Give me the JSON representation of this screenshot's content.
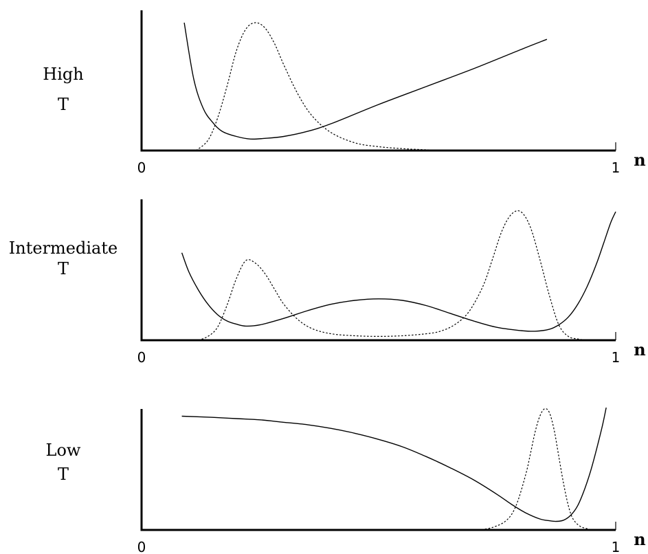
{
  "chart_data": [
    {
      "type": "line",
      "panel_label": [
        "High",
        "T"
      ],
      "xlabel": "n",
      "x_tick_labels": [
        "0",
        "1"
      ],
      "xlim": [
        0,
        1
      ],
      "ylim": [
        0,
        1
      ],
      "series": [
        {
          "style": "solid",
          "x": [
            0.09,
            0.11,
            0.13,
            0.15,
            0.17,
            0.2,
            0.23,
            0.26,
            0.3,
            0.35,
            0.4,
            0.5,
            0.6,
            0.7,
            0.8,
            0.855
          ],
          "y": [
            1.0,
            0.56,
            0.33,
            0.22,
            0.15,
            0.11,
            0.09,
            0.095,
            0.11,
            0.15,
            0.21,
            0.36,
            0.5,
            0.64,
            0.79,
            0.87
          ]
        },
        {
          "style": "dotted",
          "x": [
            0.115,
            0.14,
            0.16,
            0.18,
            0.2,
            0.22,
            0.24,
            0.26,
            0.28,
            0.3,
            0.33,
            0.36,
            0.4,
            0.45,
            0.5,
            0.55,
            0.6,
            0.66
          ],
          "y": [
            0.0,
            0.08,
            0.25,
            0.5,
            0.78,
            0.95,
            1.0,
            0.96,
            0.84,
            0.67,
            0.44,
            0.27,
            0.14,
            0.06,
            0.03,
            0.015,
            0.006,
            0.0
          ]
        }
      ]
    },
    {
      "type": "line",
      "panel_label": [
        "Intermediate",
        "T"
      ],
      "xlabel": "n",
      "x_tick_labels": [
        "0",
        "1"
      ],
      "xlim": [
        0,
        1
      ],
      "ylim": [
        0,
        1
      ],
      "series": [
        {
          "style": "solid",
          "x": [
            0.085,
            0.1,
            0.12,
            0.14,
            0.16,
            0.18,
            0.2,
            0.22,
            0.25,
            0.3,
            0.35,
            0.4,
            0.45,
            0.5,
            0.55,
            0.6,
            0.65,
            0.7,
            0.75,
            0.8,
            0.83,
            0.86,
            0.88,
            0.9,
            0.92,
            0.94,
            0.96,
            0.975,
            0.99,
            1.0
          ],
          "y": [
            0.68,
            0.53,
            0.39,
            0.28,
            0.2,
            0.15,
            0.125,
            0.11,
            0.12,
            0.17,
            0.23,
            0.28,
            0.31,
            0.322,
            0.31,
            0.27,
            0.21,
            0.15,
            0.1,
            0.075,
            0.07,
            0.085,
            0.12,
            0.18,
            0.28,
            0.42,
            0.6,
            0.76,
            0.92,
            1.0
          ]
        },
        {
          "style": "dotted",
          "x": [
            0.12,
            0.14,
            0.16,
            0.18,
            0.2,
            0.22,
            0.24,
            0.26,
            0.28,
            0.3,
            0.33,
            0.36,
            0.4,
            0.45,
            0.5,
            0.55,
            0.6,
            0.63,
            0.66,
            0.69,
            0.72,
            0.74,
            0.76,
            0.78,
            0.8,
            0.82,
            0.84,
            0.86,
            0.88,
            0.9,
            0.92,
            0.94
          ],
          "y": [
            0.0,
            0.03,
            0.1,
            0.27,
            0.48,
            0.62,
            0.6,
            0.52,
            0.4,
            0.28,
            0.16,
            0.09,
            0.05,
            0.035,
            0.03,
            0.035,
            0.05,
            0.07,
            0.12,
            0.22,
            0.42,
            0.63,
            0.85,
            0.98,
            1.0,
            0.88,
            0.63,
            0.35,
            0.12,
            0.03,
            0.01,
            0.0
          ]
        }
      ]
    },
    {
      "type": "line",
      "panel_label": [
        "Low",
        "T"
      ],
      "xlabel": "n",
      "x_tick_labels": [
        "0",
        "1"
      ],
      "xlim": [
        0,
        1
      ],
      "ylim": [
        0,
        1
      ],
      "series": [
        {
          "style": "solid",
          "x": [
            0.085,
            0.15,
            0.2,
            0.25,
            0.3,
            0.35,
            0.4,
            0.45,
            0.5,
            0.55,
            0.6,
            0.65,
            0.7,
            0.75,
            0.78,
            0.81,
            0.84,
            0.86,
            0.875,
            0.89,
            0.905,
            0.92,
            0.935,
            0.95,
            0.97,
            0.98
          ],
          "y": [
            0.93,
            0.92,
            0.91,
            0.9,
            0.88,
            0.86,
            0.83,
            0.79,
            0.74,
            0.68,
            0.6,
            0.51,
            0.41,
            0.29,
            0.21,
            0.14,
            0.09,
            0.075,
            0.07,
            0.08,
            0.12,
            0.2,
            0.34,
            0.52,
            0.82,
            1.0
          ]
        },
        {
          "style": "dotted",
          "x": [
            0.71,
            0.74,
            0.77,
            0.79,
            0.81,
            0.82,
            0.83,
            0.84,
            0.85,
            0.86,
            0.87,
            0.88,
            0.89,
            0.9,
            0.91,
            0.925,
            0.94,
            0.95
          ],
          "y": [
            0.0,
            0.02,
            0.08,
            0.2,
            0.45,
            0.62,
            0.8,
            0.93,
            0.99,
            0.96,
            0.82,
            0.6,
            0.38,
            0.2,
            0.09,
            0.03,
            0.01,
            0.0
          ]
        }
      ]
    }
  ]
}
